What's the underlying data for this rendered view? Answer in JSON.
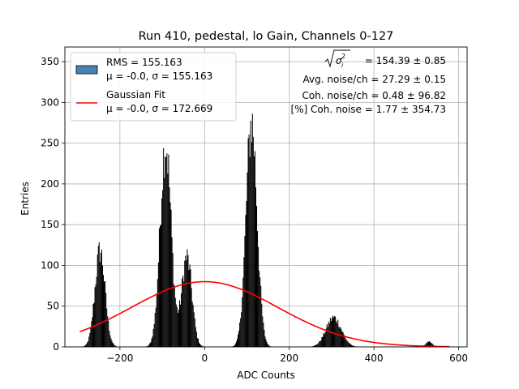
{
  "chart_data": {
    "type": "bar",
    "title": "Run 410, pedestal, lo Gain, Channels 0-127",
    "xlabel": "ADC Counts",
    "ylabel": "Entries",
    "xlim": [
      -330,
      620
    ],
    "ylim": [
      0,
      368
    ],
    "xticks": [
      -200,
      0,
      200,
      400,
      600
    ],
    "yticks": [
      0,
      50,
      100,
      150,
      200,
      250,
      300,
      350
    ],
    "xtick_labels": [
      "−200",
      "0",
      "200",
      "400",
      "600"
    ],
    "ytick_labels": [
      "0",
      "50",
      "100",
      "150",
      "200",
      "250",
      "300",
      "350"
    ],
    "grid": true,
    "legend": {
      "position": "top-left",
      "entries": [
        {
          "kind": "patch",
          "color": "#4682b4",
          "line1": "RMS = 155.163",
          "line2": "μ = -0.0, σ = 155.163"
        },
        {
          "kind": "line",
          "color": "#ff0000",
          "line1": "Gaussian Fit",
          "line2": "μ = -0.0, σ = 172.669"
        }
      ]
    },
    "annotations": {
      "sqrt_label": "σ",
      "sqrt_sub": "i",
      "sqrt_sup": "2",
      "sqrt_value": " = 154.39 ± 0.85",
      "avg_noise": "Avg. noise/ch = 27.29 ± 0.15",
      "coh_noise": "Coh. noise/ch = 0.48 ± 96.82",
      "pct_coh_noise": "[%] Coh. noise = 1.77 ± 354.73"
    },
    "histogram": {
      "color": "#000000",
      "bin_width": 2,
      "x_start": -290,
      "x_end": 580,
      "peaks": [
        {
          "center": -247,
          "height": 118,
          "sigma": 12
        },
        {
          "center": -92,
          "height": 250,
          "sigma": 13
        },
        {
          "center": -42,
          "height": 110,
          "sigma": 12
        },
        {
          "center": 111,
          "height": 275,
          "sigma": 13
        },
        {
          "center": 305,
          "height": 36,
          "sigma": 18
        },
        {
          "center": 530,
          "height": 6,
          "sigma": 8
        }
      ]
    },
    "fit": {
      "color": "#ff0000",
      "mu": 0.0,
      "sigma": 172.669,
      "amplitude": 80,
      "x_range": [
        -295,
        578
      ]
    }
  }
}
